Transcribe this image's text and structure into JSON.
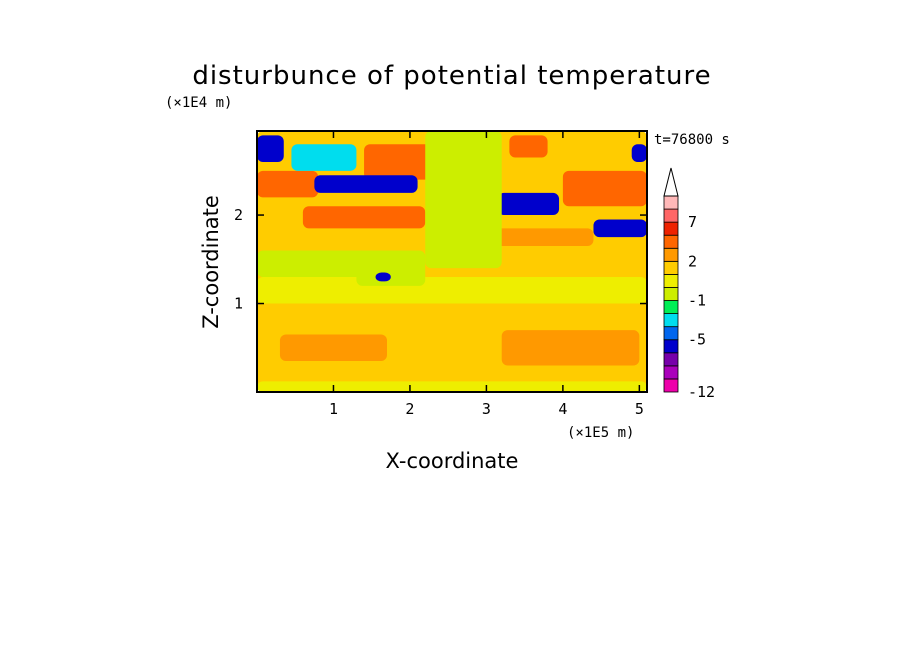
{
  "chart_data": {
    "type": "heatmap",
    "title": "disturbunce of potential temperature",
    "xlabel": "X-coordinate",
    "ylabel": "Z-coordinate",
    "x_unit": "(×1E5 m)",
    "y_unit": "(×1E4 m)",
    "time_label": "t=76800 s",
    "xlim": [
      0,
      5.1
    ],
    "ylim": [
      0,
      2.95
    ],
    "x_ticks": [
      1,
      2,
      3,
      4,
      5
    ],
    "y_ticks": [
      1,
      2
    ],
    "colorbar": {
      "extend": "max",
      "levels": [
        -12,
        -11,
        -9,
        -7,
        -5,
        -4,
        -3,
        -1,
        0,
        1,
        2,
        3,
        5,
        7,
        9,
        11
      ],
      "labels": [
        "-12",
        "-5",
        "-1",
        "2",
        "7"
      ],
      "label_values": [
        -12,
        -5,
        -1,
        2,
        7
      ],
      "colors": [
        "#ee00aa",
        "#aa00bb",
        "#7700aa",
        "#0000cc",
        "#0066ee",
        "#00ddee",
        "#00ee55",
        "#ccee00",
        "#eeee00",
        "#ffcc00",
        "#ff9900",
        "#ff6600",
        "#ee2200",
        "#ff6666",
        "#ffb8b8",
        "#ffffff"
      ]
    },
    "regions": [
      {
        "x": [
          0,
          5.1
        ],
        "z": [
          0,
          2.95
        ],
        "value": 1.5
      },
      {
        "x": [
          0,
          5.1
        ],
        "z": [
          0,
          0.12
        ],
        "value": 0.6
      },
      {
        "x": [
          0,
          5.1
        ],
        "z": [
          1.0,
          1.3
        ],
        "value": 0.4
      },
      {
        "x": [
          0.3,
          1.7
        ],
        "z": [
          0.35,
          0.65
        ],
        "value": 2.6
      },
      {
        "x": [
          3.2,
          5.0
        ],
        "z": [
          0.3,
          0.7
        ],
        "value": 2.6
      },
      {
        "x": [
          0,
          1.5
        ],
        "z": [
          1.3,
          1.6
        ],
        "value": -0.3
      },
      {
        "x": [
          1.3,
          2.2
        ],
        "z": [
          1.2,
          1.6
        ],
        "value": -0.5
      },
      {
        "x": [
          3.1,
          4.4
        ],
        "z": [
          1.65,
          1.85
        ],
        "value": 2.5
      },
      {
        "x": [
          0.6,
          2.2
        ],
        "z": [
          1.85,
          2.1
        ],
        "value": 3.8
      },
      {
        "x": [
          0,
          0.8
        ],
        "z": [
          2.2,
          2.5
        ],
        "value": 3.8
      },
      {
        "x": [
          4.0,
          5.1
        ],
        "z": [
          2.1,
          2.5
        ],
        "value": 3.5
      },
      {
        "x": [
          1.4,
          2.6
        ],
        "z": [
          2.4,
          2.8
        ],
        "value": 3.8
      },
      {
        "x": [
          3.3,
          3.8
        ],
        "z": [
          2.65,
          2.9
        ],
        "value": 3.5
      },
      {
        "x": [
          0.75,
          2.1
        ],
        "z": [
          2.25,
          2.45
        ],
        "value": -6.0
      },
      {
        "x": [
          3.15,
          3.95
        ],
        "z": [
          2.0,
          2.25
        ],
        "value": -6.0
      },
      {
        "x": [
          4.4,
          5.1
        ],
        "z": [
          1.75,
          1.95
        ],
        "value": -6.0
      },
      {
        "x": [
          0,
          0.35
        ],
        "z": [
          2.6,
          2.9
        ],
        "value": -6.0
      },
      {
        "x": [
          0.45,
          1.3
        ],
        "z": [
          2.5,
          2.8
        ],
        "value": -3.5
      },
      {
        "x": [
          4.9,
          5.1
        ],
        "z": [
          2.6,
          2.8
        ],
        "value": -6.0
      },
      {
        "x": [
          2.2,
          3.2
        ],
        "z": [
          1.4,
          2.95
        ],
        "value": -0.3
      },
      {
        "x": [
          1.55,
          1.75
        ],
        "z": [
          1.25,
          1.35
        ],
        "value": -6.0
      }
    ]
  }
}
